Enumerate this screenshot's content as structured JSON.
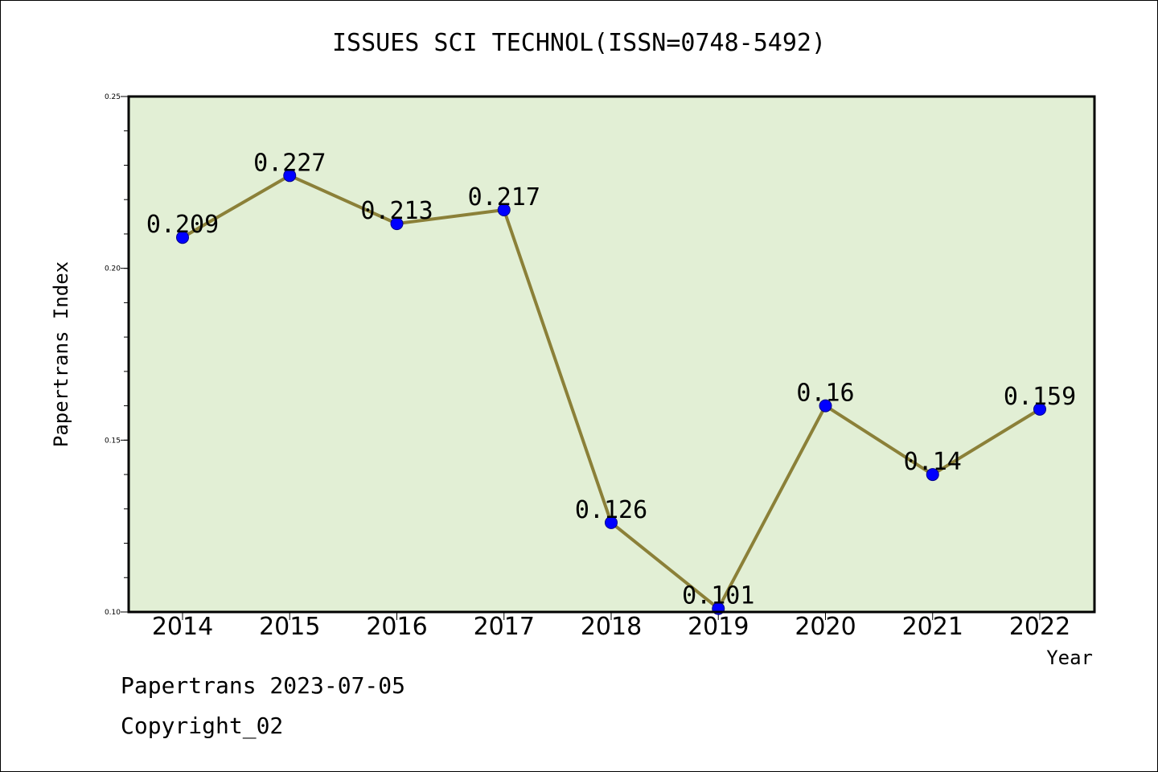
{
  "chart_data": {
    "type": "line",
    "title": "ISSUES SCI TECHNOL(ISSN=0748-5492)",
    "xlabel": "Year",
    "ylabel": "Papertrans Index",
    "categories": [
      "2014",
      "2015",
      "2016",
      "2017",
      "2018",
      "2019",
      "2020",
      "2021",
      "2022"
    ],
    "values": [
      0.209,
      0.227,
      0.213,
      0.217,
      0.126,
      0.101,
      0.16,
      0.14,
      0.159
    ],
    "data_labels": [
      "0.209",
      "0.227",
      "0.213",
      "0.217",
      "0.126",
      "0.101",
      "0.16",
      "0.14",
      "0.159"
    ],
    "ylim": [
      0.1,
      0.25
    ],
    "yticks": [
      "0.10",
      "0.15",
      "0.20",
      "0.25"
    ],
    "yticks_values": [
      0.1,
      0.15,
      0.2,
      0.25
    ],
    "grid": false,
    "colors": {
      "plot_background": "#e2efd5",
      "line": "#8b8038",
      "marker": "#0000ff"
    }
  },
  "footer": {
    "line1": "Papertrans 2023-07-05",
    "line2": "Copyright_02"
  }
}
